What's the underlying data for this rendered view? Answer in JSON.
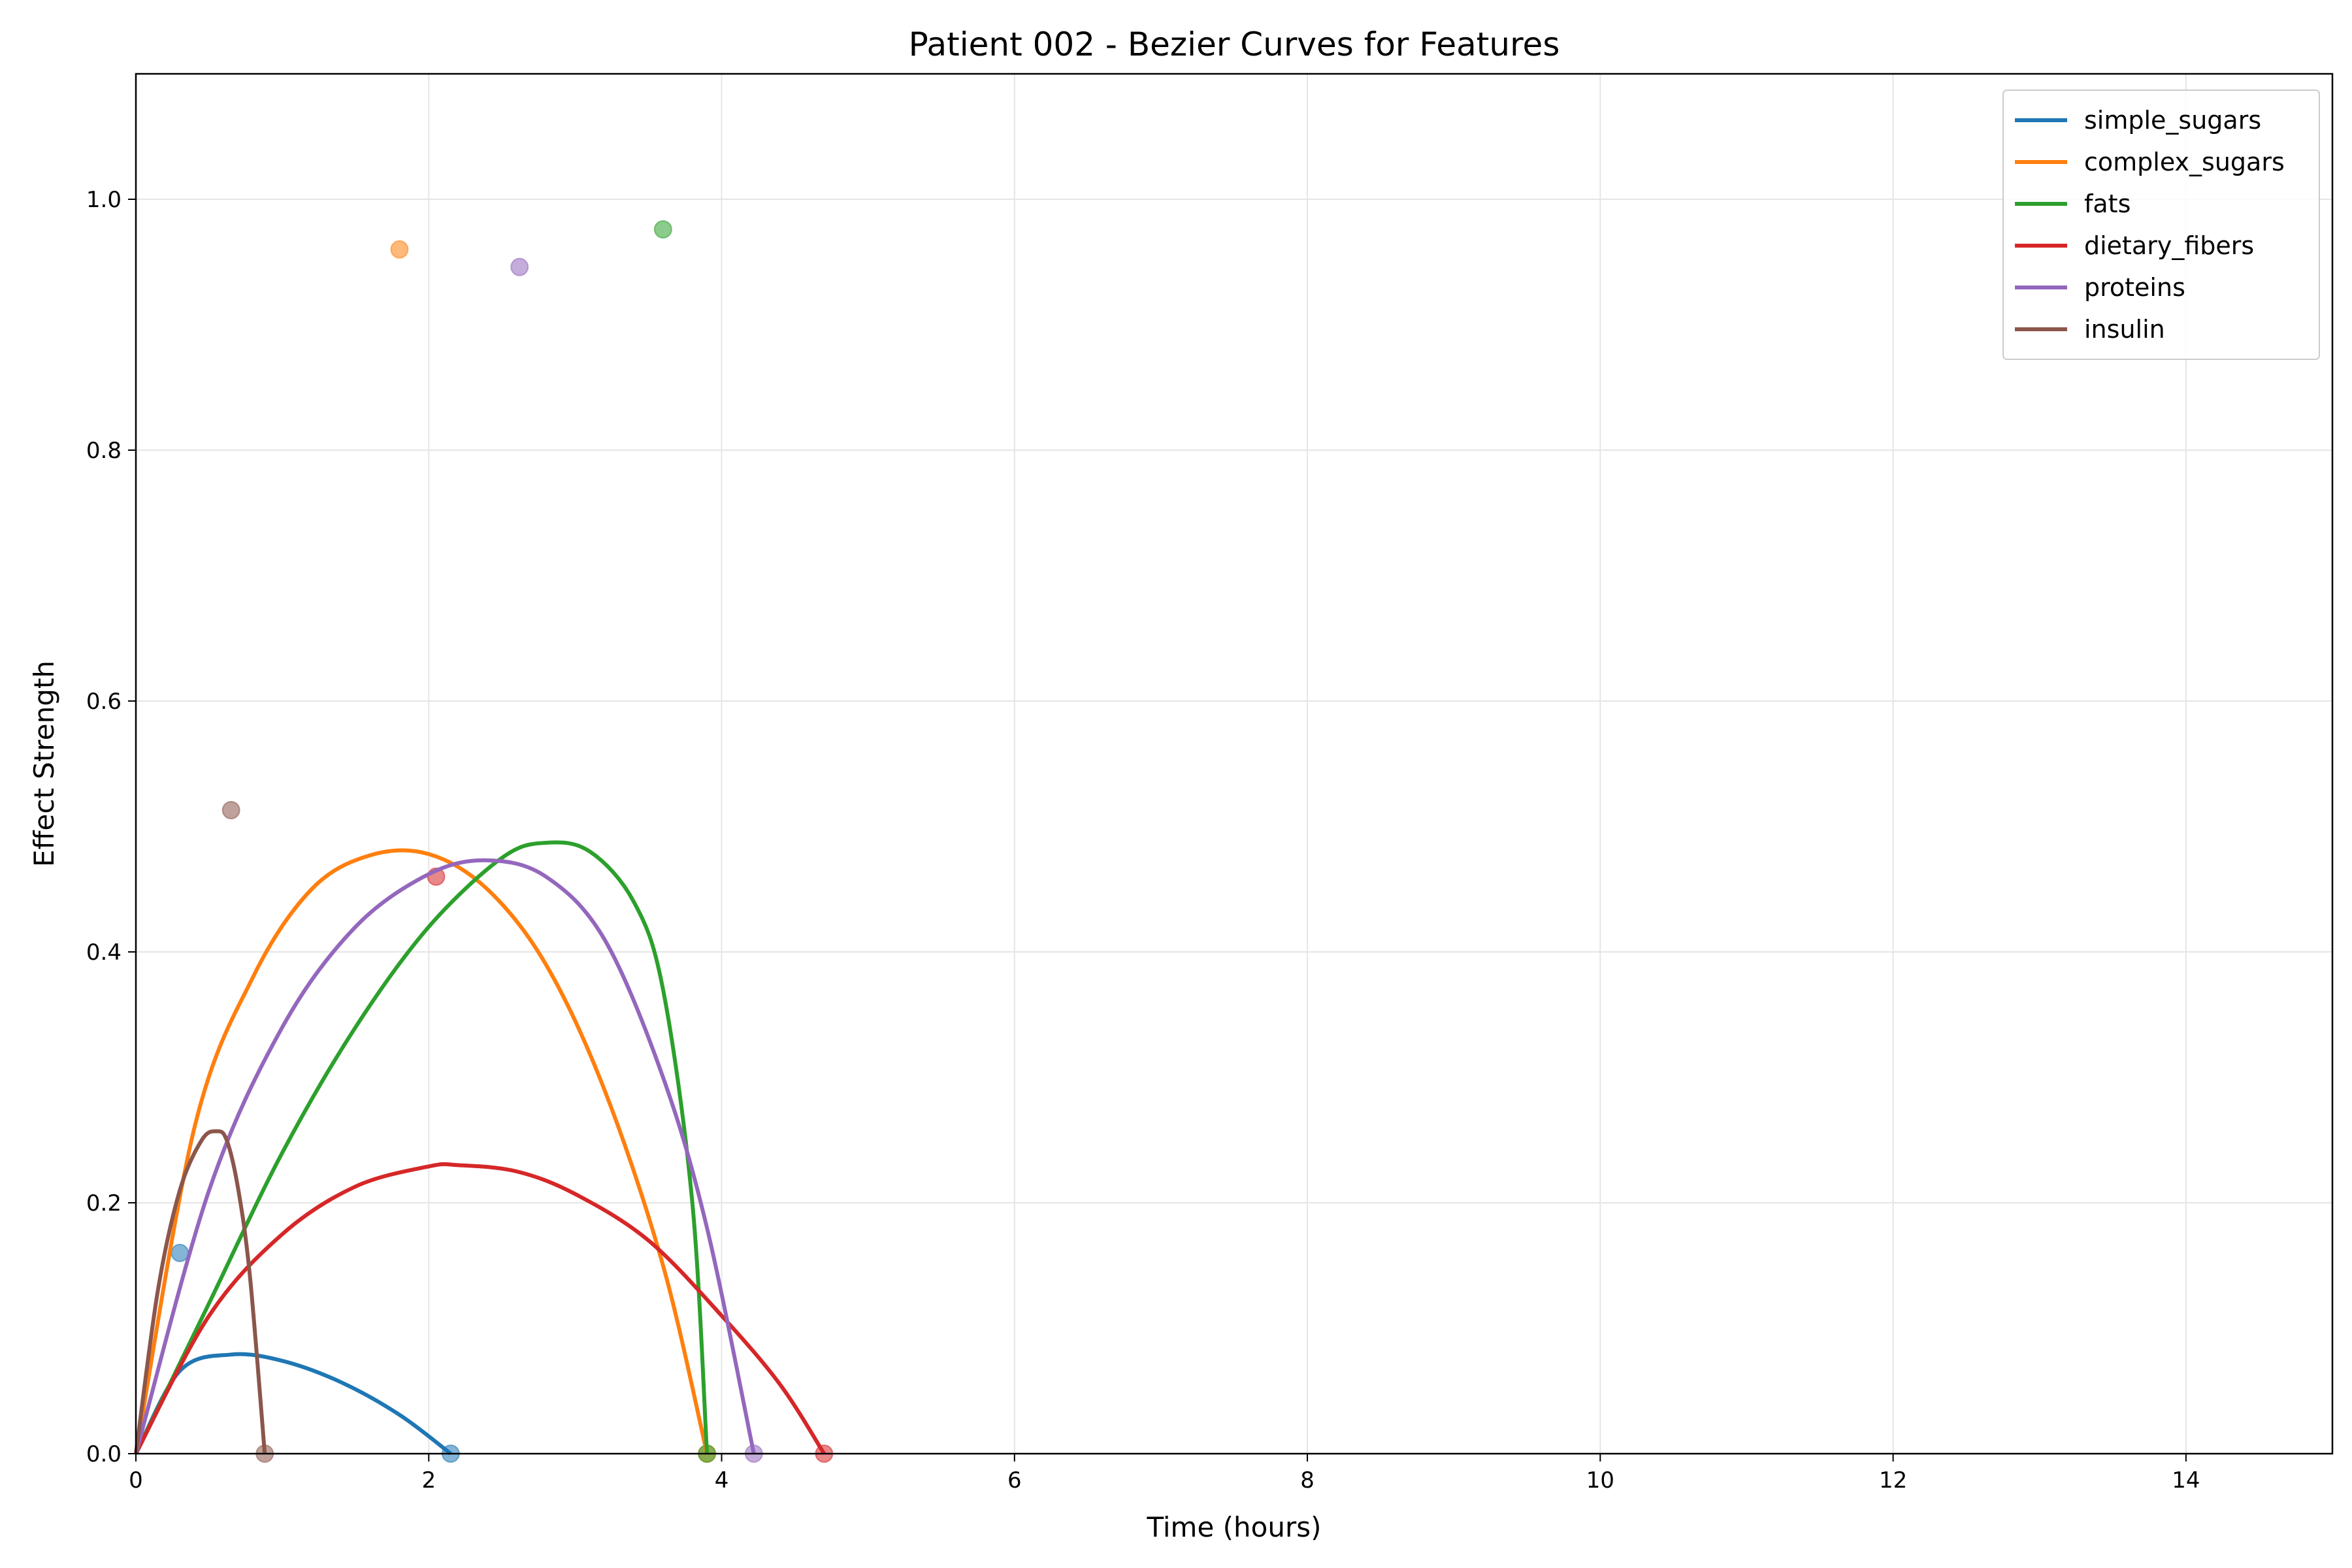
{
  "chart_data": {
    "type": "line",
    "title": "Patient 002 - Bezier Curves for Features",
    "xlabel": "Time (hours)",
    "ylabel": "Effect Strength",
    "xlim": [
      0,
      15
    ],
    "ylim": [
      0,
      1.1
    ],
    "x_ticks": [
      0,
      2,
      4,
      6,
      8,
      10,
      12,
      14
    ],
    "y_ticks": [
      0.0,
      0.2,
      0.4,
      0.6,
      0.8,
      1.0
    ],
    "x_tick_labels": [
      "0",
      "2",
      "4",
      "6",
      "8",
      "10",
      "12",
      "14"
    ],
    "y_tick_labels": [
      "0.0",
      "0.2",
      "0.4",
      "0.6",
      "0.8",
      "1.0"
    ],
    "grid": true,
    "legend_position": "top-right",
    "series": [
      {
        "name": "simple_sugars",
        "color": "#1f77b4",
        "x": [
          0,
          0.3,
          0.65,
          1.0,
          1.4,
          1.8,
          2.15
        ],
        "y": [
          0,
          0.066,
          0.079,
          0.074,
          0.057,
          0.031,
          0
        ],
        "control_points": [
          [
            0.3,
            0.16
          ],
          [
            2.15,
            0.0
          ]
        ]
      },
      {
        "name": "complex_sugars",
        "color": "#ff7f0e",
        "x": [
          0,
          0.4,
          0.8,
          1.2,
          1.6,
          2.0,
          2.4,
          2.8,
          3.2,
          3.6,
          3.9
        ],
        "y": [
          0,
          0.26,
          0.38,
          0.45,
          0.477,
          0.478,
          0.45,
          0.39,
          0.29,
          0.15,
          0
        ],
        "control_points": [
          [
            1.8,
            0.96
          ],
          [
            3.9,
            0.0
          ]
        ]
      },
      {
        "name": "fats",
        "color": "#2ca02c",
        "x": [
          0,
          0.5,
          1.0,
          1.5,
          2.0,
          2.5,
          2.8,
          3.1,
          3.4,
          3.6,
          3.8,
          3.9
        ],
        "y": [
          0,
          0.12,
          0.24,
          0.34,
          0.42,
          0.475,
          0.487,
          0.48,
          0.44,
          0.37,
          0.2,
          0
        ],
        "control_points": [
          [
            3.6,
            0.976
          ],
          [
            3.9,
            0.0
          ]
        ]
      },
      {
        "name": "dietary_fibers",
        "color": "#d62728",
        "x": [
          0,
          0.5,
          1.0,
          1.5,
          2.0,
          2.2,
          2.6,
          3.0,
          3.5,
          4.0,
          4.4,
          4.7
        ],
        "y": [
          0,
          0.11,
          0.175,
          0.213,
          0.229,
          0.23,
          0.225,
          0.207,
          0.17,
          0.11,
          0.055,
          0
        ],
        "control_points": [
          [
            2.05,
            0.46
          ],
          [
            4.7,
            0.0
          ]
        ]
      },
      {
        "name": "proteins",
        "color": "#9467bd",
        "x": [
          0,
          0.5,
          1.0,
          1.5,
          2.0,
          2.4,
          2.8,
          3.2,
          3.6,
          3.9,
          4.22
        ],
        "y": [
          0,
          0.21,
          0.34,
          0.42,
          0.462,
          0.473,
          0.46,
          0.41,
          0.3,
          0.18,
          0
        ],
        "control_points": [
          [
            2.62,
            0.946
          ],
          [
            4.22,
            0.0
          ]
        ]
      },
      {
        "name": "insulin",
        "color": "#8c564b",
        "x": [
          0,
          0.15,
          0.3,
          0.45,
          0.55,
          0.62,
          0.7,
          0.78,
          0.88
        ],
        "y": [
          0,
          0.13,
          0.21,
          0.25,
          0.257,
          0.25,
          0.21,
          0.14,
          0
        ],
        "control_points": [
          [
            0.65,
            0.513
          ],
          [
            0.88,
            0.0
          ]
        ]
      }
    ]
  }
}
